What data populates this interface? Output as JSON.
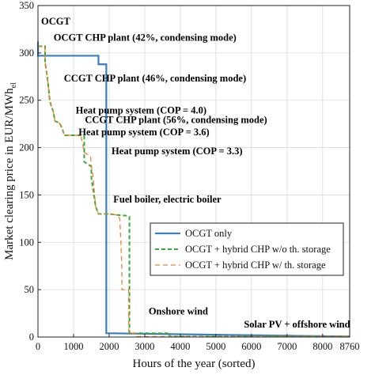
{
  "chart_data": {
    "type": "line",
    "xlabel": "Hours of the year (sorted)",
    "ylabel_main": "Market clearing price in EUR/MWh",
    "ylabel_sub": "el",
    "xlim": [
      0,
      8760
    ],
    "ylim": [
      0,
      350
    ],
    "xticks": [
      0,
      1000,
      2000,
      3000,
      4000,
      5000,
      6000,
      7000,
      8000,
      8760
    ],
    "xtick_labels": [
      "0",
      "1000",
      "2000",
      "3000",
      "4000",
      "5000",
      "6000",
      "7000",
      "8000",
      "8760"
    ],
    "yticks": [
      0,
      50,
      100,
      150,
      200,
      250,
      300,
      350
    ],
    "ytick_labels": [
      "0",
      "50",
      "100",
      "150",
      "200",
      "250",
      "300",
      "350"
    ],
    "grid": true,
    "legend_position": "center-right",
    "series": [
      {
        "name": "OCGT only",
        "color": "#3a7fc1",
        "style": "solid",
        "x": [
          0,
          0,
          420,
          420,
          1700,
          1700,
          1920,
          1920,
          8760
        ],
        "y": [
          312,
          297,
          297,
          297,
          297,
          288,
          288,
          4,
          0.5
        ]
      },
      {
        "name": "OCGT + hybrid CHP w/o th. storage",
        "color": "#3aa835",
        "style": "dashed",
        "x": [
          0,
          200,
          200,
          260,
          300,
          330,
          380,
          430,
          480,
          600,
          660,
          700,
          740,
          1150,
          1200,
          1300,
          1300,
          1500,
          1500,
          1620,
          1700,
          2000,
          2200,
          2520,
          2570,
          2570,
          3700,
          3700,
          8760
        ],
        "y": [
          307,
          307,
          290,
          275,
          262,
          250,
          243,
          238,
          228,
          226,
          222,
          218,
          213,
          213,
          213,
          212,
          185,
          180,
          168,
          138,
          130,
          130,
          129,
          128,
          127,
          4,
          4,
          0.5,
          0.5
        ]
      },
      {
        "name": "OCGT + hybrid CHP w/ th. storage",
        "color": "#e8833a",
        "style": "dashed",
        "x": [
          0,
          200,
          200,
          260,
          300,
          330,
          380,
          430,
          480,
          600,
          660,
          700,
          740,
          1150,
          1200,
          1250,
          1300,
          1380,
          1480,
          1500,
          1540,
          1620,
          1700,
          2000,
          2200,
          2250,
          2300,
          2330,
          2360,
          2360,
          2550,
          2550,
          2780,
          2780,
          8760
        ],
        "y": [
          307,
          307,
          290,
          275,
          262,
          250,
          243,
          238,
          228,
          226,
          222,
          218,
          213,
          213,
          213,
          205,
          195,
          193,
          190,
          180,
          172,
          138,
          130,
          130,
          129,
          128,
          125,
          100,
          70,
          50,
          50,
          4,
          4,
          0.5,
          0.5
        ]
      }
    ],
    "annotations": [
      {
        "text": "OCGT",
        "x": 0,
        "y": 330
      },
      {
        "text": "OCGT CHP plant (42%, condensing mode)",
        "x": 350,
        "y": 313
      },
      {
        "text": "CCGT CHP plant (46%, condensing mode)",
        "x": 640,
        "y": 270
      },
      {
        "text": "Heat pump system (COP = 4.0)",
        "x": 970,
        "y": 236
      },
      {
        "text": "CCGT CHP plant (56%, condensing mode)",
        "x": 1230,
        "y": 226
      },
      {
        "text": "Heat pump system (COP = 3.6)",
        "x": 1050,
        "y": 213
      },
      {
        "text": "Heat pump system (COP = 3.3)",
        "x": 1980,
        "y": 193
      },
      {
        "text": "Fuel boiler, electric boiler",
        "x": 2030,
        "y": 142
      },
      {
        "text": "Onshore wind",
        "x": 3020,
        "y": 24
      },
      {
        "text": "Solar PV + offshore wind",
        "x": 5700,
        "y": 10
      }
    ]
  }
}
